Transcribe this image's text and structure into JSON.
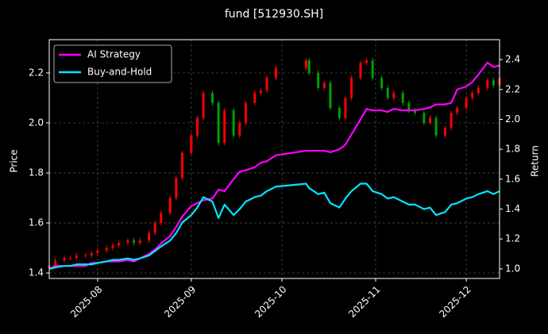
{
  "chart_data": {
    "type": "candlestick",
    "title": "fund [512930.SH]",
    "ylabel": "Price",
    "y2label": "Return",
    "x": [
      "2025-07-16",
      "2025-07-18",
      "2025-07-21",
      "2025-07-23",
      "2025-07-25",
      "2025-07-28",
      "2025-07-30",
      "2025-08-01",
      "2025-08-04",
      "2025-08-06",
      "2025-08-08",
      "2025-08-11",
      "2025-08-13",
      "2025-08-15",
      "2025-08-18",
      "2025-08-20",
      "2025-08-22",
      "2025-08-25",
      "2025-08-27",
      "2025-08-29",
      "2025-09-01",
      "2025-09-03",
      "2025-09-05",
      "2025-09-08",
      "2025-09-10",
      "2025-09-12",
      "2025-09-15",
      "2025-09-17",
      "2025-09-19",
      "2025-09-22",
      "2025-09-24",
      "2025-09-26",
      "2025-09-29",
      "2025-10-09",
      "2025-10-10",
      "2025-10-13",
      "2025-10-15",
      "2025-10-17",
      "2025-10-20",
      "2025-10-22",
      "2025-10-24",
      "2025-10-27",
      "2025-10-29",
      "2025-10-31",
      "2025-11-03",
      "2025-11-05",
      "2025-11-07",
      "2025-11-10",
      "2025-11-12",
      "2025-11-14",
      "2025-11-17",
      "2025-11-19",
      "2025-11-21",
      "2025-11-24",
      "2025-11-26",
      "2025-11-28",
      "2025-12-01",
      "2025-12-03",
      "2025-12-05",
      "2025-12-08",
      "2025-12-10",
      "2025-12-12"
    ],
    "open": [
      1.42,
      1.43,
      1.45,
      1.46,
      1.46,
      1.47,
      1.47,
      1.48,
      1.49,
      1.5,
      1.51,
      1.52,
      1.53,
      1.52,
      1.53,
      1.56,
      1.6,
      1.64,
      1.7,
      1.78,
      1.88,
      1.95,
      2.02,
      2.12,
      2.08,
      1.92,
      2.05,
      1.95,
      2.0,
      2.08,
      2.12,
      2.13,
      2.18,
      2.22,
      2.25,
      2.2,
      2.14,
      2.16,
      2.06,
      2.02,
      2.1,
      2.18,
      2.24,
      2.25,
      2.18,
      2.14,
      2.1,
      2.12,
      2.08,
      2.05,
      2.04,
      2.0,
      2.02,
      1.95,
      1.98,
      2.04,
      2.06,
      2.1,
      2.12,
      2.14,
      2.17,
      2.15
    ],
    "high": [
      1.44,
      1.46,
      1.47,
      1.47,
      1.48,
      1.48,
      1.49,
      1.5,
      1.51,
      1.52,
      1.53,
      1.54,
      1.54,
      1.54,
      1.57,
      1.61,
      1.65,
      1.71,
      1.79,
      1.89,
      1.96,
      2.03,
      2.13,
      2.13,
      2.09,
      2.06,
      2.06,
      2.01,
      2.09,
      2.13,
      2.14,
      2.19,
      2.23,
      2.26,
      2.26,
      2.21,
      2.17,
      2.17,
      2.07,
      2.11,
      2.19,
      2.25,
      2.26,
      2.26,
      2.19,
      2.15,
      2.13,
      2.13,
      2.09,
      2.06,
      2.05,
      2.03,
      2.03,
      1.99,
      2.05,
      2.07,
      2.11,
      2.13,
      2.15,
      2.18,
      2.18,
      2.19
    ],
    "low": [
      1.41,
      1.42,
      1.44,
      1.45,
      1.45,
      1.46,
      1.46,
      1.47,
      1.48,
      1.49,
      1.5,
      1.51,
      1.51,
      1.51,
      1.52,
      1.55,
      1.59,
      1.63,
      1.69,
      1.77,
      1.87,
      1.94,
      2.01,
      2.07,
      1.91,
      1.91,
      1.94,
      1.94,
      1.99,
      2.07,
      2.11,
      2.12,
      2.17,
      2.21,
      2.19,
      2.13,
      2.13,
      2.05,
      2.01,
      2.01,
      2.09,
      2.17,
      2.23,
      2.17,
      2.13,
      2.09,
      2.09,
      2.07,
      2.04,
      2.03,
      1.99,
      1.99,
      1.94,
      1.94,
      1.97,
      2.03,
      2.05,
      2.09,
      2.11,
      2.13,
      2.14,
      2.14
    ],
    "close": [
      1.43,
      1.45,
      1.46,
      1.46,
      1.47,
      1.47,
      1.48,
      1.49,
      1.5,
      1.51,
      1.52,
      1.53,
      1.52,
      1.53,
      1.56,
      1.6,
      1.64,
      1.7,
      1.78,
      1.88,
      1.95,
      2.02,
      2.12,
      2.08,
      1.92,
      2.05,
      1.95,
      2.0,
      2.08,
      2.12,
      2.13,
      2.18,
      2.22,
      2.25,
      2.2,
      2.14,
      2.16,
      2.06,
      2.02,
      2.1,
      2.18,
      2.24,
      2.25,
      2.18,
      2.14,
      2.1,
      2.12,
      2.08,
      2.05,
      2.04,
      2.0,
      2.02,
      1.95,
      1.98,
      2.04,
      2.06,
      2.1,
      2.12,
      2.14,
      2.17,
      2.15,
      2.18
    ],
    "up_color": "#ff0000",
    "down_color": "#00a000",
    "series": [
      {
        "name": "AI Strategy",
        "color": "#ff00ff",
        "axis": "y2",
        "values": [
          1.0,
          1.02,
          1.02,
          1.02,
          1.02,
          1.02,
          1.04,
          1.04,
          1.05,
          1.05,
          1.05,
          1.06,
          1.05,
          1.07,
          1.1,
          1.13,
          1.17,
          1.22,
          1.28,
          1.35,
          1.42,
          1.44,
          1.46,
          1.47,
          1.53,
          1.52,
          1.6,
          1.65,
          1.66,
          1.68,
          1.71,
          1.72,
          1.76,
          1.79,
          1.79,
          1.79,
          1.79,
          1.78,
          1.8,
          1.83,
          1.9,
          2.0,
          2.07,
          2.06,
          2.06,
          2.05,
          2.07,
          2.06,
          2.06,
          2.06,
          2.07,
          2.08,
          2.1,
          2.1,
          2.11,
          2.2,
          2.22,
          2.25,
          2.3,
          2.38,
          2.35,
          2.36
        ]
      },
      {
        "name": "Buy-and-Hold",
        "color": "#00e5ff",
        "axis": "y2",
        "values": [
          1.0,
          1.01,
          1.02,
          1.02,
          1.03,
          1.03,
          1.03,
          1.04,
          1.05,
          1.06,
          1.06,
          1.07,
          1.06,
          1.07,
          1.09,
          1.12,
          1.15,
          1.19,
          1.24,
          1.31,
          1.36,
          1.41,
          1.48,
          1.45,
          1.34,
          1.43,
          1.36,
          1.4,
          1.45,
          1.48,
          1.49,
          1.52,
          1.55,
          1.57,
          1.54,
          1.5,
          1.51,
          1.44,
          1.41,
          1.47,
          1.52,
          1.57,
          1.57,
          1.52,
          1.5,
          1.47,
          1.48,
          1.45,
          1.43,
          1.43,
          1.4,
          1.41,
          1.36,
          1.38,
          1.43,
          1.44,
          1.47,
          1.48,
          1.5,
          1.52,
          1.5,
          1.52
        ]
      }
    ],
    "xlim": [
      "2025-07-16",
      "2025-12-12"
    ],
    "xticks": [
      {
        "value": "2025-08-01",
        "label": "2025-08"
      },
      {
        "value": "2025-09-01",
        "label": "2025-09"
      },
      {
        "value": "2025-10-01",
        "label": "2025-10"
      },
      {
        "value": "2025-11-01",
        "label": "2025-11"
      },
      {
        "value": "2025-12-01",
        "label": "2025-12"
      }
    ],
    "ylim": [
      1.378,
      2.333
    ],
    "yticks": [
      1.4,
      1.6,
      1.8,
      {
        "value": 2,
        "label": "2.0"
      },
      2.2
    ],
    "y2lim": [
      0.936,
      2.533
    ],
    "y2ticks": [
      {
        "value": 1,
        "label": "1.0"
      },
      1.2,
      1.4,
      1.6,
      1.8,
      {
        "value": 2,
        "label": "2.0"
      },
      2.2,
      2.4
    ],
    "grid": true,
    "legend": "upper left"
  }
}
